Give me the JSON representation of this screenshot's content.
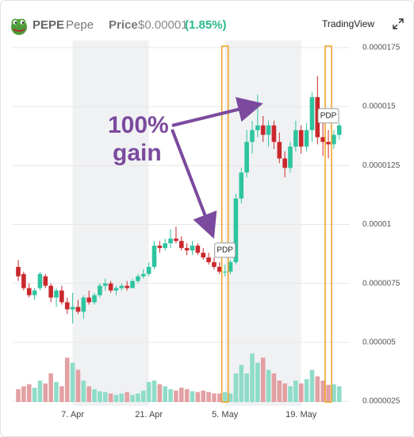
{
  "header": {
    "symbol": "PEPE",
    "name": "Pepe",
    "price_label": "Price",
    "price": "$0.00001",
    "change": "(1.85%)",
    "source": "TradingView"
  },
  "chart_data": {
    "type": "candlestick",
    "categories": [
      null,
      null,
      null,
      null,
      null,
      null,
      null,
      null,
      null,
      null,
      "7. Apr",
      null,
      null,
      null,
      null,
      null,
      null,
      null,
      null,
      null,
      null,
      null,
      null,
      null,
      "21. Apr",
      null,
      null,
      null,
      null,
      null,
      null,
      null,
      null,
      null,
      null,
      null,
      null,
      null,
      "5. May",
      null,
      null,
      null,
      null,
      null,
      null,
      null,
      null,
      null,
      null,
      null,
      null,
      null,
      "19. May",
      null,
      null,
      null,
      null,
      null,
      null,
      null
    ],
    "open": [
      8.2e-06,
      7.9e-06,
      7.3e-06,
      7e-06,
      7.3e-06,
      7.8e-06,
      7.4e-06,
      6.9e-06,
      7.2e-06,
      6.7e-06,
      6.4e-06,
      6.5e-06,
      6.3e-06,
      6.9e-06,
      6.7e-06,
      7e-06,
      7.4e-06,
      7.5e-06,
      7.2e-06,
      7.3e-06,
      7.4e-06,
      7.3e-06,
      7.6e-06,
      7.8e-06,
      7.9e-06,
      8.2e-06,
      9.1e-06,
      9e-06,
      9.2e-06,
      9.4e-06,
      9.3e-06,
      9e-06,
      8.9e-06,
      9.1e-06,
      8.8e-06,
      8.6e-06,
      8.4e-06,
      8.2e-06,
      8e-06,
      8e-06,
      8.4e-06,
      1.11e-05,
      1.22e-05,
      1.35e-05,
      1.4e-05,
      1.42e-05,
      1.38e-05,
      1.42e-05,
      1.35e-05,
      1.28e-05,
      1.24e-05,
      1.33e-05,
      1.4e-05,
      1.33e-05,
      1.4e-05,
      1.54e-05,
      1.37e-05,
      1.35e-05,
      1.34e-05,
      1.38e-05
    ],
    "high": [
      8.5e-06,
      8e-06,
      7.5e-06,
      7.3e-06,
      8e-06,
      7.9e-06,
      7.5e-06,
      7.3e-06,
      7.4e-06,
      6.9e-06,
      7.1e-06,
      6.8e-06,
      7e-06,
      7.2e-06,
      7.1e-06,
      7.5e-06,
      7.7e-06,
      7.6e-06,
      7.4e-06,
      7.5e-06,
      7.6e-06,
      7.7e-06,
      7.9e-06,
      8.1e-06,
      8.4e-06,
      9.3e-06,
      9.3e-06,
      9.4e-06,
      9.8e-06,
      9.9e-06,
      9.5e-06,
      9.2e-06,
      9.3e-06,
      9.2e-06,
      9e-06,
      8.8e-06,
      8.6e-06,
      8.4e-06,
      8.3e-06,
      8.5e-06,
      1.13e-05,
      1.24e-05,
      1.4e-05,
      1.44e-05,
      1.55e-05,
      1.46e-05,
      1.44e-05,
      1.44e-05,
      1.39e-05,
      1.31e-05,
      1.35e-05,
      1.44e-05,
      1.42e-05,
      1.43e-05,
      1.56e-05,
      1.63e-05,
      1.43e-05,
      1.4e-05,
      1.4e-05,
      1.43e-05
    ],
    "low": [
      7.6e-06,
      7.2e-06,
      6.9e-06,
      6.8e-06,
      7.2e-06,
      7.3e-06,
      6.7e-06,
      6.5e-06,
      6.6e-06,
      6.2e-06,
      5.8e-06,
      6.2e-06,
      6e-06,
      6.6e-06,
      6.6e-06,
      6.9e-06,
      7.2e-06,
      7.1e-06,
      7e-06,
      7.2e-06,
      7.2e-06,
      7.3e-06,
      7.5e-06,
      7.7e-06,
      7.8e-06,
      8.1e-06,
      8.8e-06,
      8.9e-06,
      9e-06,
      9.2e-06,
      8.9e-06,
      8.7e-06,
      8.7e-06,
      8.7e-06,
      8.5e-06,
      8.3e-06,
      8.1e-06,
      7.9e-06,
      7.8e-06,
      7.9e-06,
      8.3e-06,
      1.09e-05,
      1.2e-05,
      1.3e-05,
      1.37e-05,
      1.35e-05,
      1.33e-05,
      1.32e-05,
      1.26e-05,
      1.2e-05,
      1.22e-05,
      1.31e-05,
      1.3e-05,
      1.31e-05,
      1.35e-05,
      1.34e-05,
      1.29e-05,
      1.28e-05,
      1.32e-05,
      1.36e-05
    ],
    "close": [
      7.8e-06,
      7.3e-06,
      7e-06,
      7.2e-06,
      7.9e-06,
      7.4e-06,
      6.9e-06,
      7.2e-06,
      6.7e-06,
      6.4e-06,
      6.5e-06,
      6.3e-06,
      6.9e-06,
      6.7e-06,
      7e-06,
      7.4e-06,
      7.5e-06,
      7.2e-06,
      7.3e-06,
      7.4e-06,
      7.3e-06,
      7.6e-06,
      7.8e-06,
      7.9e-06,
      8.2e-06,
      9.1e-06,
      9e-06,
      9.2e-06,
      9.4e-06,
      9.3e-06,
      9e-06,
      8.9e-06,
      9.1e-06,
      8.8e-06,
      8.6e-06,
      8.4e-06,
      8.2e-06,
      8e-06,
      8e-06,
      8.4e-06,
      1.11e-05,
      1.22e-05,
      1.35e-05,
      1.4e-05,
      1.42e-05,
      1.38e-05,
      1.42e-05,
      1.35e-05,
      1.28e-05,
      1.24e-05,
      1.33e-05,
      1.4e-05,
      1.33e-05,
      1.4e-05,
      1.54e-05,
      1.37e-05,
      1.35e-05,
      1.34e-05,
      1.38e-05,
      1.42e-05
    ],
    "volume": [
      18,
      22,
      25,
      20,
      30,
      26,
      40,
      28,
      22,
      62,
      55,
      45,
      30,
      22,
      18,
      15,
      14,
      12,
      10,
      12,
      14,
      10,
      12,
      16,
      28,
      30,
      25,
      22,
      18,
      16,
      20,
      18,
      15,
      14,
      16,
      14,
      12,
      12,
      14,
      12,
      40,
      52,
      40,
      68,
      55,
      62,
      45,
      40,
      30,
      26,
      22,
      30,
      26,
      32,
      45,
      36,
      30,
      24,
      25,
      22
    ],
    "up_color": "#2ec4a0",
    "down_color": "#c9282d",
    "up_volume_color": "#8fdcc9",
    "down_volume_color": "#e3a0a3",
    "ylim": [
      2.3e-06,
      1.78e-05
    ],
    "yticks": [
      1.75e-05,
      1.5e-05,
      1.25e-05,
      1e-05,
      7.5e-06,
      5e-06,
      2.5e-06
    ],
    "grid": true,
    "annotations": [
      "100%",
      "gain",
      "PDP",
      "PDP"
    ]
  }
}
